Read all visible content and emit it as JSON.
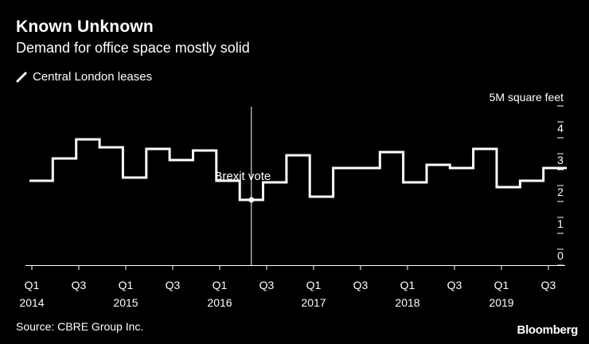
{
  "header": {
    "title": "Known Unknown",
    "subtitle": "Demand for office space mostly solid"
  },
  "legend": {
    "series_label": "Central London leases",
    "color": "#ffffff"
  },
  "footer": {
    "source": "Source: CBRE Group Inc.",
    "brand": "Bloomberg"
  },
  "chart_data": {
    "type": "line",
    "step": true,
    "title": "Known Unknown",
    "subtitle": "Demand for office space mostly solid",
    "ylabel": "5M square feet",
    "ylim": [
      0,
      5
    ],
    "yticks": [
      0,
      1,
      2,
      3,
      4
    ],
    "grid": false,
    "legend_position": "top-left",
    "x_tick_labels": [
      {
        "label": "Q1",
        "year": "2014"
      },
      {
        "label": "Q3",
        "year": ""
      },
      {
        "label": "Q1",
        "year": "2015"
      },
      {
        "label": "Q3",
        "year": ""
      },
      {
        "label": "Q1",
        "year": "2016"
      },
      {
        "label": "Q3",
        "year": ""
      },
      {
        "label": "Q1",
        "year": "2017"
      },
      {
        "label": "Q3",
        "year": ""
      },
      {
        "label": "Q1",
        "year": "2018"
      },
      {
        "label": "Q3",
        "year": ""
      },
      {
        "label": "Q1",
        "year": "2019"
      },
      {
        "label": "Q3",
        "year": ""
      }
    ],
    "categories": [
      "Q1 2014",
      "Q2 2014",
      "Q3 2014",
      "Q4 2014",
      "Q1 2015",
      "Q2 2015",
      "Q3 2015",
      "Q4 2015",
      "Q1 2016",
      "Q2 2016",
      "Q3 2016",
      "Q4 2016",
      "Q1 2017",
      "Q2 2017",
      "Q3 2017",
      "Q4 2017",
      "Q1 2018",
      "Q2 2018",
      "Q3 2018",
      "Q4 2018",
      "Q1 2019",
      "Q2 2019",
      "Q3 2019"
    ],
    "series": [
      {
        "name": "Central London leases",
        "color": "#ffffff",
        "values": [
          2.65,
          3.35,
          3.95,
          3.7,
          2.75,
          3.65,
          3.3,
          3.6,
          2.65,
          2.05,
          2.6,
          3.45,
          2.15,
          3.05,
          3.05,
          3.55,
          2.6,
          3.15,
          3.05,
          3.65,
          2.45,
          2.65,
          3.05
        ]
      }
    ],
    "annotations": [
      {
        "text": "Brexit vote",
        "x": "Q2 2016",
        "value": 2.05
      }
    ]
  }
}
